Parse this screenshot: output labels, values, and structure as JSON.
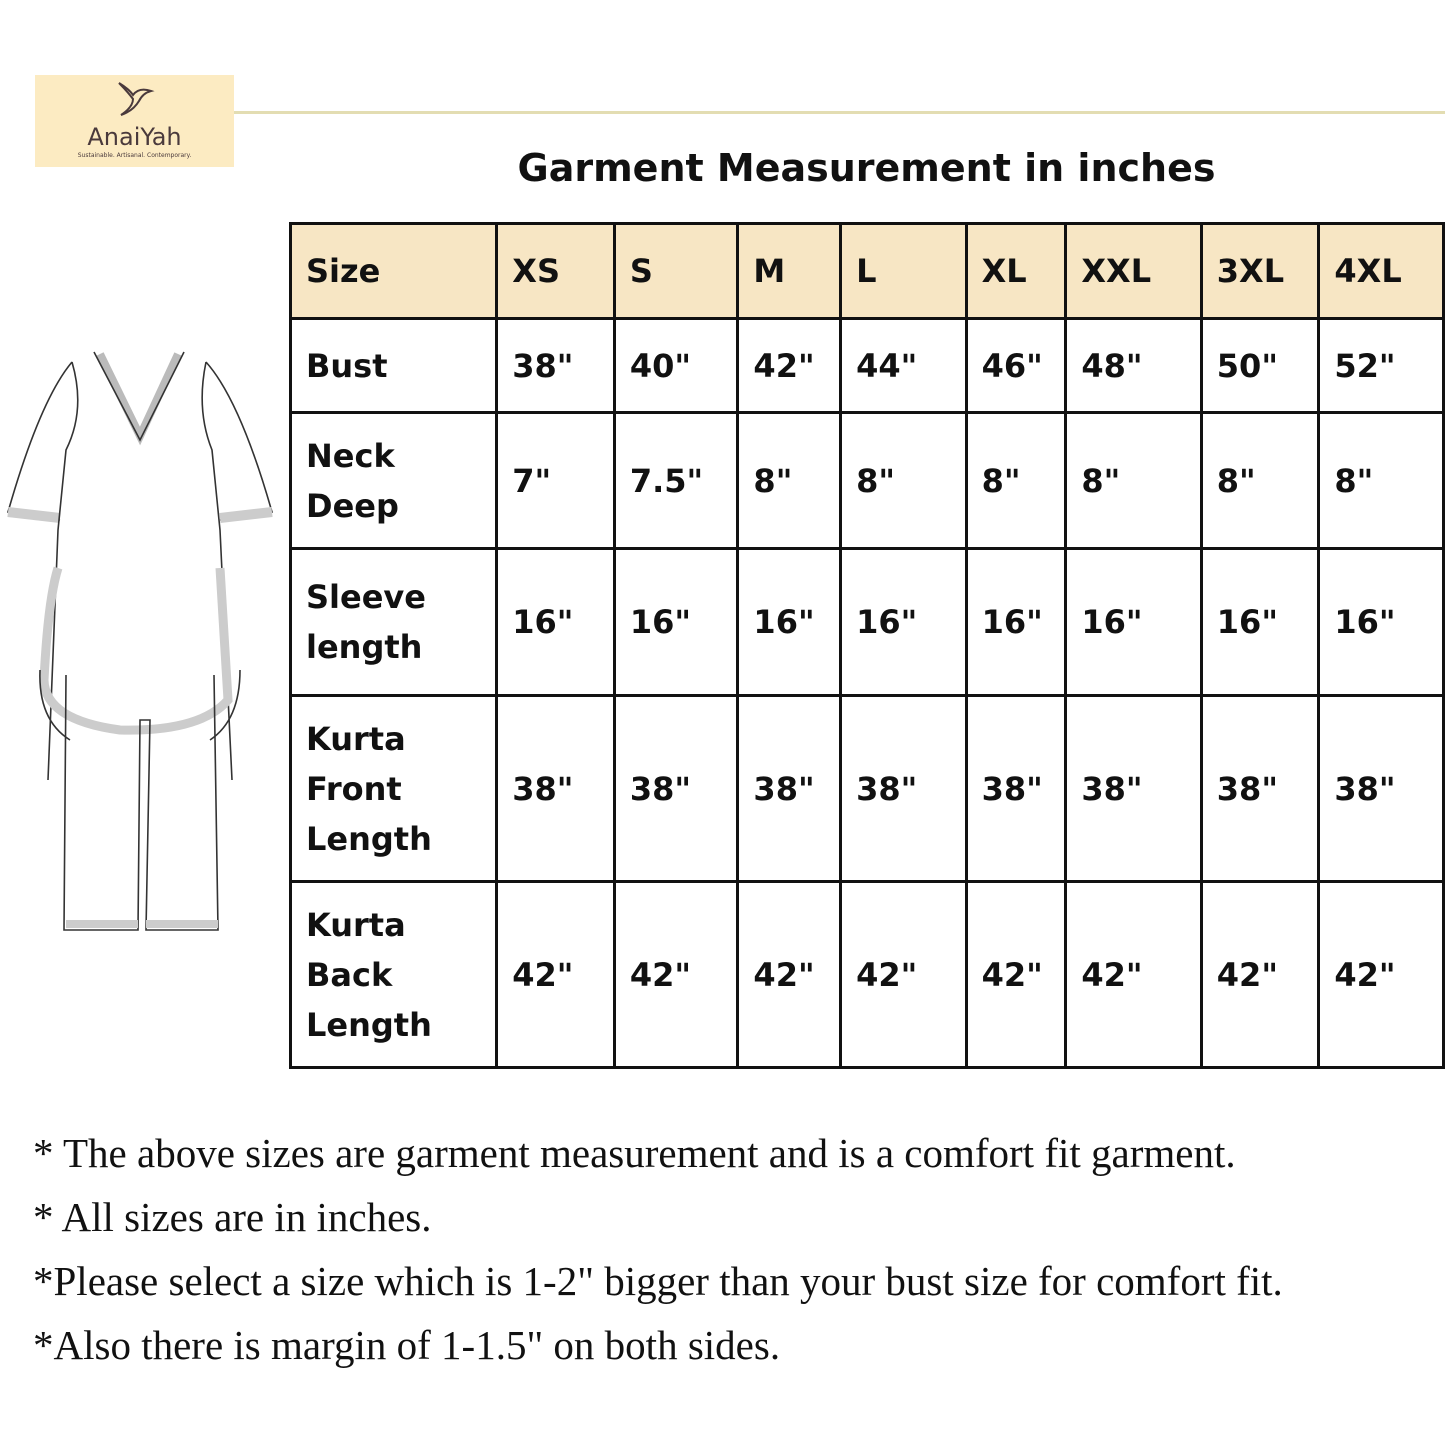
{
  "brand": {
    "name": "AnaiYah",
    "tagline": "Sustainable. Artisanal. Contemporary.",
    "bg_color": "#fcebc2"
  },
  "title": "Garment Measurement in inches",
  "table": {
    "header_color": "#f7e6c4",
    "headers": [
      "Size",
      "XS",
      "S",
      "M",
      "L",
      "XL",
      "XXL",
      "3XL",
      "4XL"
    ],
    "rows": [
      {
        "label": "Bust",
        "values": [
          "38\"",
          "40\"",
          "42\"",
          "44\"",
          "46\"",
          "48\"",
          "50\"",
          "52\""
        ]
      },
      {
        "label": "Neck Deep",
        "values": [
          "7\"",
          "7.5\"",
          "8\"",
          "8\"",
          "8\"",
          "8\"",
          "8\"",
          "8\""
        ]
      },
      {
        "label": "Sleeve length",
        "values": [
          "16\"",
          "16\"",
          "16\"",
          "16\"",
          "16\"",
          "16\"",
          "16\"",
          "16\""
        ]
      },
      {
        "label": "Kurta Front Length",
        "values": [
          "38\"",
          "38\"",
          "38\"",
          "38\"",
          "38\"",
          "38\"",
          "38\"",
          "38\""
        ]
      },
      {
        "label": "Kurta Back Length",
        "values": [
          "42\"",
          "42\"",
          "42\"",
          "42\"",
          "42\"",
          "42\"",
          "42\"",
          "42\""
        ]
      }
    ]
  },
  "notes": [
    "* The above sizes are garment measurement and is a comfort fit garment.",
    "* All sizes are in inches.",
    "*Please select a size which is 1-2\" bigger than your bust size for comfort fit.",
    "*Also there is margin of 1-1.5\" on both sides."
  ]
}
